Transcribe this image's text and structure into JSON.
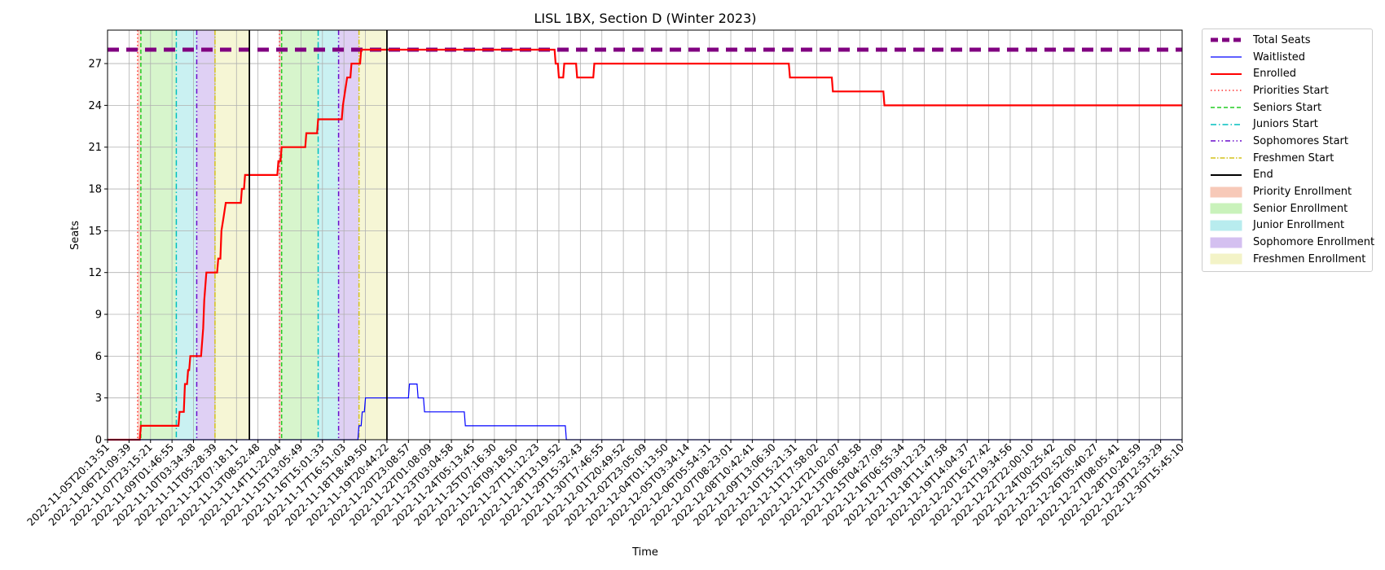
{
  "chart_data": {
    "type": "line",
    "title": "LISL 1BX, Section D (Winter 2023)",
    "xlabel": "Time",
    "ylabel": "Seats",
    "ylim": [
      0,
      29.4
    ],
    "yticks": [
      0,
      3,
      6,
      9,
      12,
      15,
      18,
      21,
      24,
      27
    ],
    "grid": true,
    "legend_position": "outside-right-top",
    "x_tick_labels": [
      "2022-11-05T20:13:51",
      "2022-11-06T21:09:39",
      "2022-11-07T23:15:21",
      "2022-11-09T01:46:55",
      "2022-11-10T03:34:38",
      "2022-11-11T05:28:39",
      "2022-11-12T07:18:11",
      "2022-11-13T08:52:48",
      "2022-11-14T11:22:04",
      "2022-11-15T13:05:49",
      "2022-11-16T15:01:33",
      "2022-11-17T16:51:03",
      "2022-11-18T18:49:50",
      "2022-11-19T20:44:22",
      "2022-11-20T23:08:57",
      "2022-11-22T01:08:09",
      "2022-11-23T03:04:58",
      "2022-11-24T05:13:45",
      "2022-11-25T07:16:30",
      "2022-11-26T09:18:50",
      "2022-11-27T11:12:23",
      "2022-11-28T13:19:52",
      "2022-11-29T15:32:43",
      "2022-11-30T17:46:55",
      "2022-12-01T20:49:52",
      "2022-12-02T23:05:09",
      "2022-12-04T01:13:50",
      "2022-12-05T03:34:14",
      "2022-12-06T05:54:31",
      "2022-12-07T08:23:01",
      "2022-12-08T10:42:41",
      "2022-12-09T13:06:30",
      "2022-12-10T15:21:31",
      "2022-12-11T17:58:02",
      "2022-12-12T21:02:07",
      "2022-12-13T06:58:58",
      "2022-12-15T04:27:09",
      "2022-12-16T06:55:34",
      "2022-12-17T09:12:23",
      "2022-12-18T11:47:58",
      "2022-12-19T14:04:37",
      "2022-12-20T16:27:42",
      "2022-12-21T19:34:56",
      "2022-12-22T22:00:10",
      "2022-12-24T00:25:42",
      "2022-12-25T02:52:00",
      "2022-12-26T05:40:27",
      "2022-12-27T08:05:41",
      "2022-12-28T10:28:59",
      "2022-12-29T12:53:29",
      "2022-12-30T15:45:10"
    ],
    "total_seats": 28,
    "series": [
      {
        "name": "Total Seats",
        "style": "dashed",
        "color": "#800080",
        "points": [
          [
            0,
            28
          ],
          [
            50,
            28
          ]
        ]
      },
      {
        "name": "Enrolled",
        "style": "step",
        "color": "#ff0000",
        "points": [
          [
            0,
            0
          ],
          [
            1.5,
            0
          ],
          [
            1.55,
            1
          ],
          [
            3.3,
            1
          ],
          [
            3.35,
            2
          ],
          [
            3.55,
            2
          ],
          [
            3.6,
            4
          ],
          [
            3.7,
            4
          ],
          [
            3.75,
            5
          ],
          [
            3.8,
            5
          ],
          [
            3.85,
            6
          ],
          [
            4.35,
            6
          ],
          [
            4.4,
            7
          ],
          [
            4.45,
            8
          ],
          [
            4.5,
            10
          ],
          [
            4.55,
            11
          ],
          [
            4.6,
            12
          ],
          [
            5.1,
            12
          ],
          [
            5.15,
            13
          ],
          [
            5.25,
            13
          ],
          [
            5.3,
            15
          ],
          [
            5.4,
            16
          ],
          [
            5.5,
            17
          ],
          [
            6.2,
            17
          ],
          [
            6.25,
            18
          ],
          [
            6.35,
            18
          ],
          [
            6.4,
            19
          ],
          [
            7.9,
            19
          ],
          [
            7.95,
            20
          ],
          [
            8.05,
            20
          ],
          [
            8.1,
            21
          ],
          [
            9.2,
            21
          ],
          [
            9.25,
            22
          ],
          [
            9.75,
            22
          ],
          [
            9.8,
            23
          ],
          [
            10.9,
            23
          ],
          [
            10.95,
            24
          ],
          [
            11.05,
            25
          ],
          [
            11.15,
            26
          ],
          [
            11.3,
            26
          ],
          [
            11.35,
            27
          ],
          [
            11.75,
            27
          ],
          [
            11.8,
            28
          ],
          [
            20.8,
            28
          ],
          [
            20.85,
            27
          ],
          [
            20.95,
            27
          ],
          [
            21.0,
            26
          ],
          [
            21.2,
            26
          ],
          [
            21.25,
            27
          ],
          [
            21.8,
            27
          ],
          [
            21.85,
            26
          ],
          [
            22.6,
            26
          ],
          [
            22.65,
            27
          ],
          [
            31.7,
            27
          ],
          [
            31.75,
            26
          ],
          [
            33.7,
            26
          ],
          [
            33.75,
            25
          ],
          [
            36.1,
            25
          ],
          [
            36.15,
            24
          ],
          [
            50,
            24
          ]
        ]
      },
      {
        "name": "Waitlisted",
        "style": "step",
        "color": "#0000ff",
        "points": [
          [
            0,
            0
          ],
          [
            11.65,
            0
          ],
          [
            11.7,
            1
          ],
          [
            11.8,
            1
          ],
          [
            11.85,
            2
          ],
          [
            11.95,
            2
          ],
          [
            12.0,
            3
          ],
          [
            14.0,
            3
          ],
          [
            14.05,
            4
          ],
          [
            14.4,
            4
          ],
          [
            14.45,
            3
          ],
          [
            14.7,
            3
          ],
          [
            14.75,
            2
          ],
          [
            16.6,
            2
          ],
          [
            16.65,
            1
          ],
          [
            21.3,
            1
          ],
          [
            21.35,
            0
          ],
          [
            50,
            0
          ]
        ]
      },
      {
        "name": "End",
        "style": "vline",
        "color": "#000000",
        "x": [
          6.6,
          13.0
        ]
      }
    ],
    "start_lines": [
      {
        "name": "Priorities Start",
        "color": "#ff3333",
        "style": "dotted",
        "x": [
          1.4,
          8.0
        ]
      },
      {
        "name": "Seniors Start",
        "color": "#22cc22",
        "style": "dashed",
        "x": [
          1.55,
          8.1
        ]
      },
      {
        "name": "Juniors Start",
        "color": "#00bfbf",
        "style": "dashdot",
        "x": [
          3.2,
          9.8
        ]
      },
      {
        "name": "Sophomores Start",
        "color": "#6a0dcc",
        "style": "dashdotdot",
        "x": [
          4.15,
          10.75
        ]
      },
      {
        "name": "Freshmen Start",
        "color": "#d4c21a",
        "style": "dashdotthin",
        "x": [
          5.0,
          11.7
        ]
      }
    ],
    "bands": [
      {
        "name": "Priority Enrollment",
        "color": "#f7c9b8",
        "ranges": [
          [
            1.4,
            1.55
          ],
          [
            8.0,
            8.1
          ]
        ]
      },
      {
        "name": "Senior Enrollment",
        "color": "#c9f2bb",
        "ranges": [
          [
            1.55,
            3.2
          ],
          [
            8.1,
            9.8
          ]
        ]
      },
      {
        "name": "Junior Enrollment",
        "color": "#b8ecee",
        "ranges": [
          [
            3.2,
            4.15
          ],
          [
            9.8,
            10.75
          ]
        ]
      },
      {
        "name": "Sophomore Enrollment",
        "color": "#d4c0f0",
        "ranges": [
          [
            4.15,
            5.0
          ],
          [
            10.75,
            11.7
          ]
        ]
      },
      {
        "name": "Freshmen Enrollment",
        "color": "#f3f3c7",
        "ranges": [
          [
            5.0,
            6.6
          ],
          [
            11.7,
            13.0
          ]
        ]
      }
    ]
  },
  "legend": [
    {
      "label": "Total Seats",
      "kind": "line",
      "color": "#800080",
      "style": "dashed-thick"
    },
    {
      "label": "Waitlisted",
      "kind": "line",
      "color": "#0000ff",
      "style": "solid-thin"
    },
    {
      "label": "Enrolled",
      "kind": "line",
      "color": "#ff0000",
      "style": "solid"
    },
    {
      "label": "Priorities Start",
      "kind": "line",
      "color": "#ff3333",
      "style": "dotted"
    },
    {
      "label": "Seniors Start",
      "kind": "line",
      "color": "#22cc22",
      "style": "dashed"
    },
    {
      "label": "Juniors Start",
      "kind": "line",
      "color": "#00bfbf",
      "style": "dashdot"
    },
    {
      "label": "Sophomores Start",
      "kind": "line",
      "color": "#6a0dcc",
      "style": "dashdotdot"
    },
    {
      "label": "Freshmen Start",
      "kind": "line",
      "color": "#d4c21a",
      "style": "dashdotthin"
    },
    {
      "label": "End",
      "kind": "line",
      "color": "#000000",
      "style": "solid"
    },
    {
      "label": "Priority Enrollment",
      "kind": "patch",
      "color": "#f7c9b8"
    },
    {
      "label": "Senior Enrollment",
      "kind": "patch",
      "color": "#c9f2bb"
    },
    {
      "label": "Junior Enrollment",
      "kind": "patch",
      "color": "#b8ecee"
    },
    {
      "label": "Sophomore Enrollment",
      "kind": "patch",
      "color": "#d4c0f0"
    },
    {
      "label": "Freshmen Enrollment",
      "kind": "patch",
      "color": "#f3f3c7"
    }
  ]
}
